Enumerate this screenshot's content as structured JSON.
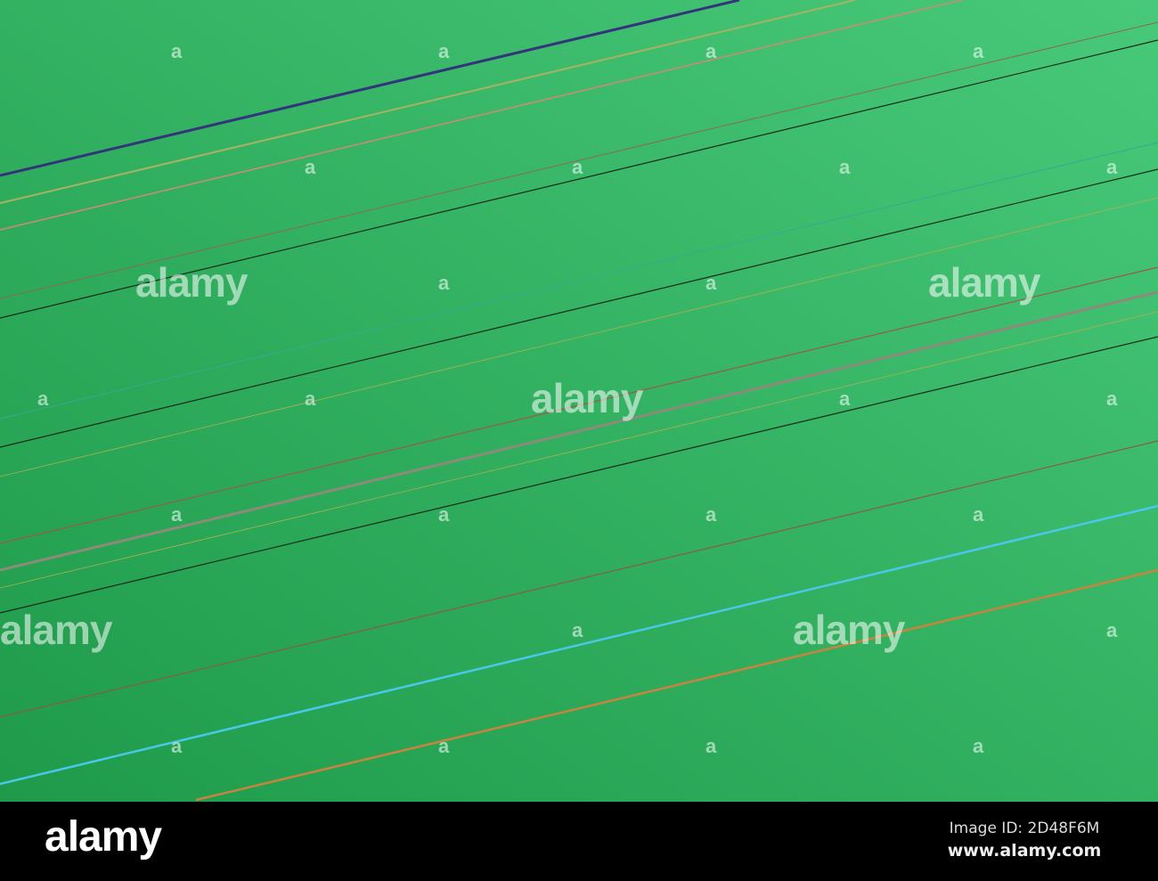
{
  "image": {
    "description_colors": {
      "background_dark": "#1e9a4a",
      "background_light": "#48c97a"
    },
    "lines": [
      {
        "color": "#34347c"
      },
      {
        "color": "#a9b162"
      },
      {
        "color": "#d08a72"
      },
      {
        "color": "#8a6a50"
      },
      {
        "color": "#1a2a1a"
      },
      {
        "color": "#3aa890"
      },
      {
        "color": "#1a2a1a"
      },
      {
        "color": "#b0b050"
      },
      {
        "color": "#9a5a4a"
      },
      {
        "color": "#8e8a7a"
      },
      {
        "color": "#b0b050"
      },
      {
        "color": "#1a2a1a"
      },
      {
        "color": "#8a5a4a"
      },
      {
        "color": "#4ac8ea"
      },
      {
        "color": "#c8843e"
      }
    ]
  },
  "watermark": "alamy",
  "footer": {
    "logo": "alamy",
    "image_id": "Image ID: 2D48F6M",
    "website": "www.alamy.com"
  }
}
